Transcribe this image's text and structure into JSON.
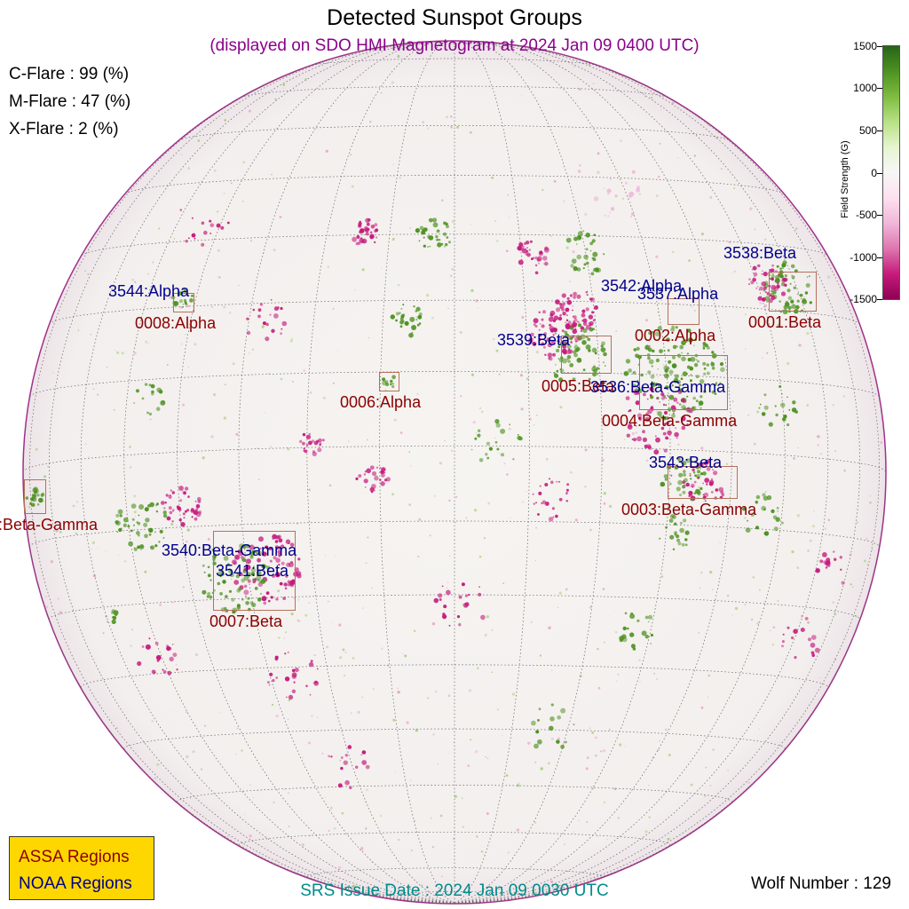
{
  "title": "Detected Sunspot Groups",
  "subtitle": "(displayed on SDO HMI Magnetogram at 2024 Jan 09 0400 UTC)",
  "flare_probabilities": {
    "c_flare": "C-Flare : 99 (%)",
    "m_flare": "M-Flare : 47 (%)",
    "x_flare": "X-Flare :  2 (%)"
  },
  "colorbar": {
    "title": "Field Strength (G)",
    "ticks": [
      "1500",
      "1000",
      "500",
      "0",
      "-500",
      "-1000",
      "-1500"
    ],
    "colors": {
      "positive": "#4d9221",
      "negative": "#c51b7d",
      "neutral": "#f7f7f7"
    }
  },
  "regions": {
    "assa": [
      "0001:Beta",
      "0002:Alpha",
      "0003:Beta-Gamma",
      "0004:Beta-Gamma",
      "0005:Beta",
      "0006:Alpha",
      "0007:Beta",
      "0008:Alpha",
      ":Beta-Gamma"
    ],
    "noaa": [
      "3538:Beta",
      "3542:Alpha",
      "3537:Alpha",
      "3539:Beta",
      "3536:Beta-Gamma",
      "3543:Beta",
      "3540:Beta-Gamma",
      "3541:Beta",
      "3544:Alpha"
    ]
  },
  "legend": {
    "assa": "ASSA Regions",
    "noaa": "NOAA Regions",
    "colors": {
      "assa": "#8b0000",
      "noaa": "#00008b",
      "background": "#ffd700"
    }
  },
  "srs_issue_date": "SRS Issue Date : 2024 Jan 09 0030 UTC",
  "wolf_number": "Wolf Number : 129"
}
